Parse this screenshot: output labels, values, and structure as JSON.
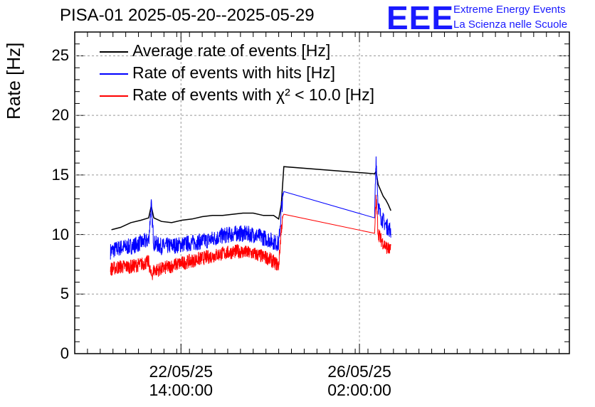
{
  "header": {
    "title": "PISA-01 2025-05-20--2025-05-29",
    "logo_text": "EEE",
    "logo_line1": "Extreme Energy Events",
    "logo_line2": "La Scienza nelle Scuole"
  },
  "colors": {
    "average": "#000000",
    "hits": "#0000ff",
    "chi2": "#ff0000",
    "logo": "#1a1aff"
  },
  "chart_data": {
    "type": "line",
    "title": "PISA-01 2025-05-20--2025-05-29",
    "ylabel": "Rate [Hz]",
    "xlabel": "",
    "ylim": [
      0,
      27
    ],
    "yticks": [
      "0",
      "5",
      "10",
      "15",
      "20",
      "25"
    ],
    "x_unit": "days since 2025-05-20 00:00",
    "xlim": [
      0.5,
      10.2
    ],
    "xticks": [
      {
        "date": "22/05/25",
        "time": "14:00:00",
        "day": 2.5833
      },
      {
        "date": "26/05/25",
        "time": "02:00:00",
        "day": 6.0833
      }
    ],
    "grid": true,
    "legend_position": "top-left",
    "series": [
      {
        "name": "Average rate of events [Hz]",
        "color": "#000000",
        "x": [
          1.22,
          1.4,
          1.6,
          1.8,
          1.95,
          2.0,
          2.05,
          2.2,
          2.4,
          2.6,
          2.8,
          3.0,
          3.2,
          3.4,
          3.6,
          3.8,
          4.0,
          4.2,
          4.4,
          4.5,
          4.55,
          4.6,
          6.38,
          6.41,
          6.45,
          6.5,
          6.55,
          6.6,
          6.65,
          6.7
        ],
        "y": [
          10.4,
          10.6,
          11.0,
          11.2,
          11.4,
          12.4,
          11.4,
          11.1,
          11.0,
          11.2,
          11.3,
          11.5,
          11.6,
          11.6,
          11.7,
          11.8,
          11.8,
          11.6,
          11.6,
          11.3,
          12.5,
          15.7,
          15.1,
          15.3,
          14.2,
          13.7,
          13.2,
          12.9,
          12.5,
          12.0
        ]
      },
      {
        "name": "Rate of events with hits [Hz]",
        "color": "#0000ff",
        "x": [
          1.2,
          1.4,
          1.6,
          1.8,
          1.95,
          2.0,
          2.05,
          2.2,
          2.5,
          2.8,
          3.1,
          3.4,
          3.7,
          4.0,
          4.3,
          4.5,
          4.55,
          4.6,
          6.38,
          6.41,
          6.45,
          6.5,
          6.6,
          6.7
        ],
        "y": [
          8.6,
          8.9,
          9.0,
          9.3,
          9.5,
          12.5,
          9.3,
          9.0,
          9.1,
          9.3,
          9.5,
          9.9,
          10.1,
          10.0,
          9.6,
          9.2,
          12.0,
          13.6,
          11.4,
          16.5,
          12.5,
          11.5,
          10.8,
          10.3
        ]
      },
      {
        "name": "Rate of events with χ² < 10.0 [Hz]",
        "color": "#ff0000",
        "x": [
          1.2,
          1.4,
          1.6,
          1.8,
          1.95,
          2.0,
          2.05,
          2.2,
          2.5,
          2.8,
          3.1,
          3.4,
          3.7,
          4.0,
          4.3,
          4.5,
          4.55,
          4.6,
          6.38,
          6.41,
          6.45,
          6.5,
          6.6,
          6.7
        ],
        "y": [
          7.1,
          7.3,
          7.3,
          7.5,
          7.7,
          6.5,
          7.0,
          7.1,
          7.5,
          7.8,
          8.1,
          8.4,
          8.6,
          8.4,
          8.0,
          7.4,
          10.5,
          11.7,
          10.1,
          13.0,
          10.2,
          9.6,
          9.0,
          8.6
        ]
      }
    ]
  }
}
